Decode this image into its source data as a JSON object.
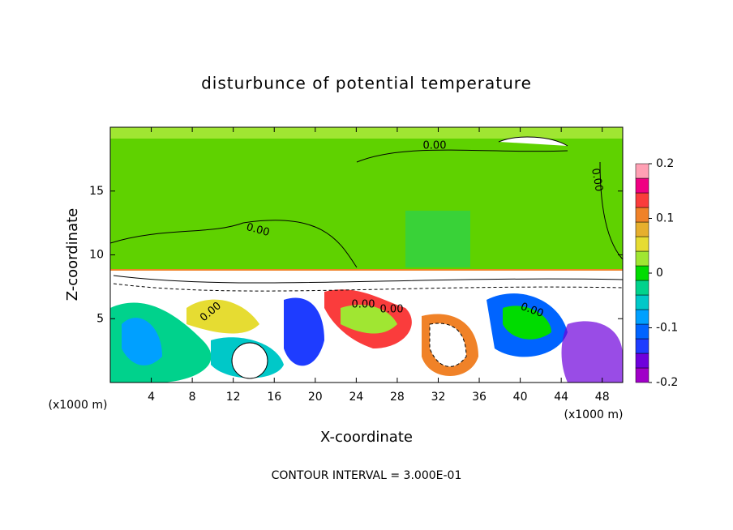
{
  "chart_data": {
    "type": "contour",
    "title": "disturbunce of potential temperature",
    "x_label": "X-coordinate",
    "y_label": "Z-coordinate",
    "x_units": "(x1000 m)",
    "y_units": "(x1000 m)",
    "xlim": [
      0,
      50
    ],
    "xticks": [
      4,
      8,
      12,
      16,
      20,
      24,
      28,
      32,
      36,
      40,
      44,
      48
    ],
    "ylim": [
      0,
      20
    ],
    "yticks": [
      5,
      10,
      15
    ],
    "colorbar_lim": [
      -0.2,
      0.2
    ],
    "colorbar_ticks": [
      -0.2,
      -0.1,
      0,
      0.1,
      0.2
    ],
    "colorbar_colors": [
      "#a000c8",
      "#6e00dc",
      "#1e3cff",
      "#0064ff",
      "#00a0ff",
      "#00c8c8",
      "#00d28c",
      "#00dc00",
      "#a0e632",
      "#e6dc32",
      "#e6af2d",
      "#f08228",
      "#fa3c3c",
      "#f00082",
      "#ffa0b4"
    ],
    "contour_labels": [
      "0.00",
      "0.00",
      "0.00",
      "0.00",
      "0.00",
      "0.00",
      "0.00"
    ],
    "annotation": "CONTOUR INTERVAL = 3.000E-01"
  }
}
